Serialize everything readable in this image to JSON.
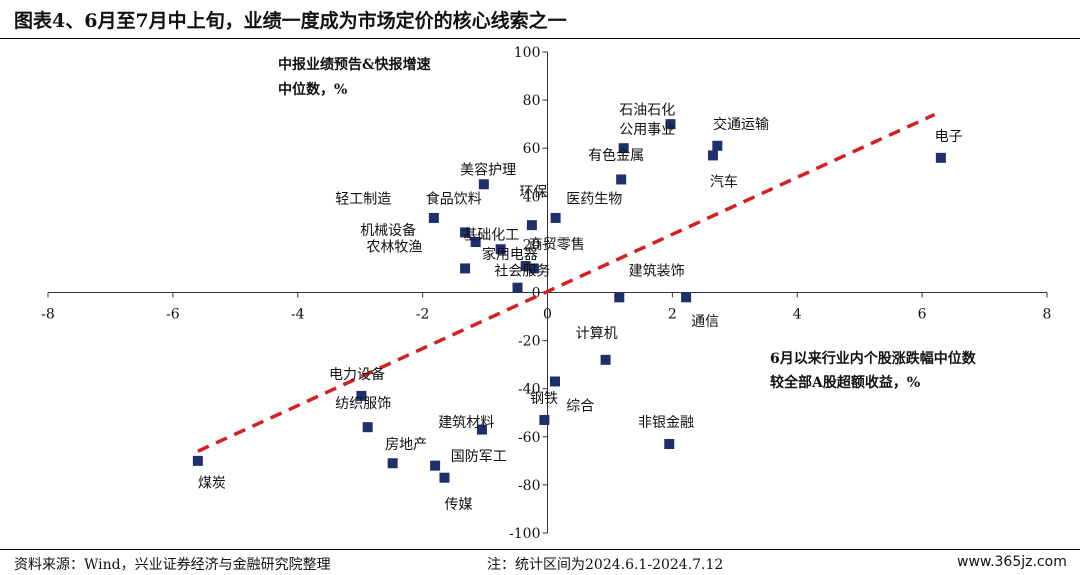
{
  "title": "图表4、6月至7月中上旬，业绩一度成为市场定价的核心线索之一",
  "footer": {
    "source": "资料来源：Wind，兴业证券经济与金融研究院整理",
    "note": "注：统计区间为2024.6.1-2024.7.12",
    "watermark": "www.365jz.com"
  },
  "chart_data": {
    "type": "scatter",
    "ylabel_lines": [
      "中报业绩预告&快报增速",
      "中位数，%"
    ],
    "xlabel_lines": [
      "6月以来行业内个股涨跌幅中位数",
      "较全部A股超额收益，%"
    ],
    "xlim": [
      -8,
      8
    ],
    "ylim": [
      -100,
      100
    ],
    "xticks": [
      -8,
      -6,
      -4,
      -2,
      0,
      2,
      4,
      6,
      8
    ],
    "yticks": [
      -100,
      -80,
      -60,
      -40,
      -20,
      0,
      20,
      40,
      60,
      80,
      100
    ],
    "xtick_labels": [
      "-8",
      "-6",
      "-4",
      "-2",
      "0",
      "2",
      "4",
      "6",
      "8"
    ],
    "ytick_labels": [
      "-100",
      "-80",
      "-60",
      "-40",
      "-20",
      "0",
      "20",
      "40",
      "60",
      "80",
      "100"
    ],
    "marker_color": "#1f2f6b",
    "trend_color": "#d42020",
    "trendline": {
      "x": [
        -5.6,
        6.2
      ],
      "y": [
        -66,
        74
      ]
    },
    "points": [
      {
        "name": "石油石化",
        "x": 1.97,
        "y": 70,
        "ldx": 1.15,
        "ldy": 4
      },
      {
        "name": "公用事业",
        "x": 1.22,
        "y": 60,
        "ldx": 1.15,
        "ldy": 6
      },
      {
        "name": "交通运输",
        "x": 2.72,
        "y": 61,
        "ldx": 2.65,
        "ldy": 7
      },
      {
        "name": "汽车",
        "x": 2.65,
        "y": 57,
        "ldx": 2.6,
        "ldy": -13
      },
      {
        "name": "电子",
        "x": 6.3,
        "y": 56,
        "ldx": 6.2,
        "ldy": 7
      },
      {
        "name": "有色金属",
        "x": 1.18,
        "y": 47,
        "ldx": 0.65,
        "ldy": 8
      },
      {
        "name": "美容护理",
        "x": -1.02,
        "y": 45,
        "ldx": -1.4,
        "ldy": 4
      },
      {
        "name": "轻工制造",
        "x": -1.82,
        "y": 31,
        "ldx": -3.4,
        "ldy": 6
      },
      {
        "name": "食品饮料",
        "x": -1.32,
        "y": 25,
        "ldx": -1.95,
        "ldy": 12
      },
      {
        "name": "环保",
        "x": -0.25,
        "y": 28,
        "ldx": -0.45,
        "ldy": 12
      },
      {
        "name": "医药生物",
        "x": 0.13,
        "y": 31,
        "ldx": 0.3,
        "ldy": 6
      },
      {
        "name": "机械设备",
        "x": -1.15,
        "y": 21,
        "ldx": -3.0,
        "ldy": 3
      },
      {
        "name": "基础化工",
        "x": -0.75,
        "y": 18,
        "ldx": -1.35,
        "ldy": 4
      },
      {
        "name": "农林牧渔",
        "x": -1.32,
        "y": 10,
        "ldx": -2.9,
        "ldy": 7
      },
      {
        "name": "家用电器",
        "x": -0.35,
        "y": 11,
        "ldx": -1.05,
        "ldy": 3
      },
      {
        "name": "商贸零售",
        "x": -0.22,
        "y": 10,
        "ldx": -0.3,
        "ldy": 8
      },
      {
        "name": "社会服务",
        "x": -0.48,
        "y": 2,
        "ldx": -0.85,
        "ldy": 5
      },
      {
        "name": "建筑装饰",
        "x": 1.15,
        "y": -2,
        "ldx": 1.3,
        "ldy": 9
      },
      {
        "name": "通信",
        "x": 2.22,
        "y": -2,
        "ldx": 2.3,
        "ldy": -12
      },
      {
        "name": "煤炭",
        "x": -5.6,
        "y": -70,
        "ldx": -5.6,
        "ldy": -11
      },
      {
        "name": "计算机",
        "x": 0.93,
        "y": -28,
        "ldx": 0.45,
        "ldy": 9
      },
      {
        "name": "电力设备",
        "x": -2.98,
        "y": -43,
        "ldx": -3.5,
        "ldy": 7
      },
      {
        "name": "纺织服饰",
        "x": -2.88,
        "y": -56,
        "ldx": -3.4,
        "ldy": 8
      },
      {
        "name": "钢铁",
        "x": 0.12,
        "y": -37,
        "ldx": -0.28,
        "ldy": -9
      },
      {
        "name": "综合",
        "x": -0.05,
        "y": -53,
        "ldx": 0.3,
        "ldy": 4
      },
      {
        "name": "非银金融",
        "x": 1.95,
        "y": -63,
        "ldx": 1.45,
        "ldy": 7
      },
      {
        "name": "建筑材料",
        "x": -1.05,
        "y": -57,
        "ldx": -1.75,
        "ldy": 1
      },
      {
        "name": "房地产",
        "x": -2.48,
        "y": -71,
        "ldx": -2.6,
        "ldy": 6
      },
      {
        "name": "国防军工",
        "x": -1.8,
        "y": -72,
        "ldx": -1.55,
        "ldy": 2
      },
      {
        "name": "传媒",
        "x": -1.65,
        "y": -77,
        "ldx": -1.65,
        "ldy": -13
      }
    ]
  }
}
